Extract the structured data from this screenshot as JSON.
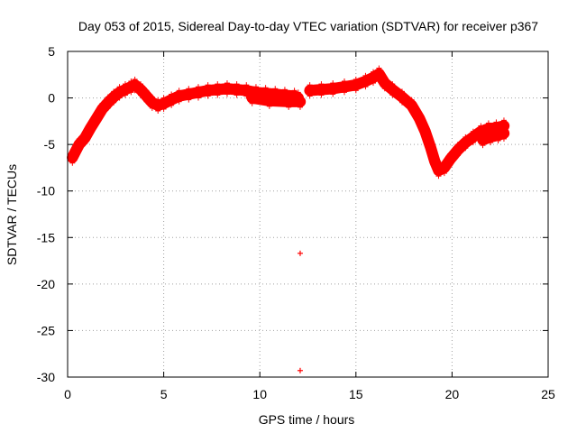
{
  "chart_data": {
    "type": "scatter",
    "title": "Day 053 of 2015, Sidereal Day-to-day VTEC variation (SDTVAR) for receiver p367",
    "xlabel": "GPS time / hours",
    "ylabel": "SDTVAR / TECUs",
    "xlim": [
      0,
      25
    ],
    "ylim": [
      -30,
      5
    ],
    "xticks": [
      0,
      5,
      10,
      15,
      20,
      25
    ],
    "yticks": [
      5,
      0,
      -5,
      -10,
      -15,
      -20,
      -25,
      -30
    ],
    "grid": true,
    "legend": "none",
    "marker": "+",
    "color": "#ff0000",
    "series": [
      {
        "name": "SDTVAR",
        "band_thickness": 1.2,
        "segments": [
          [
            [
              0.25,
              -6.4
            ],
            [
              0.4,
              -5.8
            ],
            [
              0.6,
              -5.0
            ],
            [
              0.9,
              -4.3
            ],
            [
              1.2,
              -3.2
            ],
            [
              1.5,
              -2.2
            ],
            [
              1.8,
              -1.2
            ],
            [
              2.1,
              -0.5
            ],
            [
              2.4,
              0.1
            ],
            [
              2.7,
              0.6
            ],
            [
              3.0,
              0.9
            ],
            [
              3.3,
              1.2
            ],
            [
              3.5,
              1.4
            ],
            [
              3.8,
              0.9
            ],
            [
              4.1,
              0.2
            ],
            [
              4.4,
              -0.5
            ],
            [
              4.7,
              -0.8
            ],
            [
              5.0,
              -0.6
            ],
            [
              5.4,
              -0.2
            ],
            [
              5.8,
              0.2
            ],
            [
              6.3,
              0.4
            ],
            [
              6.8,
              0.6
            ],
            [
              7.3,
              0.8
            ],
            [
              7.8,
              0.9
            ],
            [
              8.3,
              1.0
            ],
            [
              8.8,
              0.9
            ],
            [
              9.3,
              0.8
            ],
            [
              9.8,
              0.6
            ],
            [
              10.3,
              0.5
            ],
            [
              10.8,
              0.4
            ],
            [
              11.3,
              0.3
            ],
            [
              11.8,
              0.2
            ],
            [
              12.0,
              0.0
            ]
          ],
          [
            [
              9.6,
              0.0
            ],
            [
              10.5,
              -0.3
            ],
            [
              11.5,
              -0.4
            ],
            [
              12.1,
              -0.4
            ]
          ],
          [
            [
              12.6,
              0.8
            ],
            [
              13.2,
              0.9
            ],
            [
              13.8,
              1.0
            ],
            [
              14.4,
              1.2
            ],
            [
              15.0,
              1.4
            ],
            [
              15.5,
              1.8
            ],
            [
              15.9,
              2.2
            ],
            [
              16.2,
              2.6
            ],
            [
              16.5,
              1.6
            ],
            [
              16.9,
              0.9
            ],
            [
              17.4,
              0.1
            ],
            [
              17.9,
              -0.8
            ],
            [
              18.3,
              -2.2
            ],
            [
              18.6,
              -3.6
            ],
            [
              18.9,
              -5.4
            ],
            [
              19.1,
              -6.8
            ],
            [
              19.3,
              -7.8
            ],
            [
              19.6,
              -7.5
            ],
            [
              19.9,
              -6.6
            ],
            [
              20.3,
              -5.6
            ],
            [
              20.7,
              -4.8
            ],
            [
              21.1,
              -4.2
            ],
            [
              21.5,
              -3.6
            ],
            [
              21.9,
              -3.3
            ],
            [
              22.3,
              -3.2
            ],
            [
              22.7,
              -3.0
            ]
          ],
          [
            [
              21.6,
              -4.5
            ],
            [
              22.0,
              -4.2
            ],
            [
              22.4,
              -4.0
            ],
            [
              22.7,
              -3.8
            ]
          ]
        ],
        "outliers": [
          [
            12.1,
            -16.7
          ],
          [
            12.1,
            -29.3
          ]
        ]
      }
    ]
  }
}
